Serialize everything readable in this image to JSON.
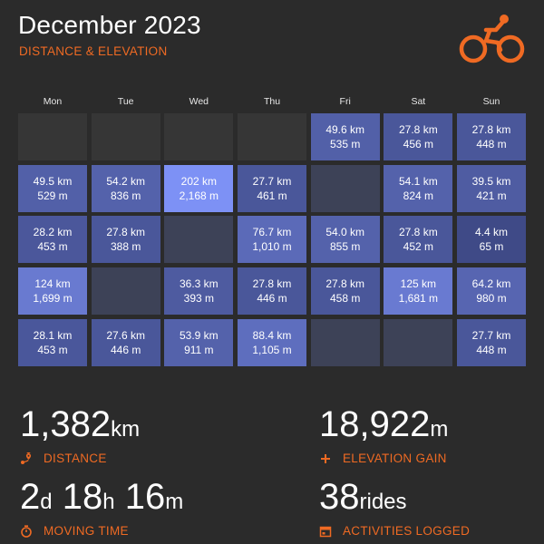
{
  "header": {
    "title": "December 2023",
    "subtitle": "DISTANCE & ELEVATION"
  },
  "colors": {
    "background": "#2b2b2b",
    "accent": "#ef6a23",
    "empty_cell": "#363636",
    "no_ride_cell": "#3d4257",
    "ride_low": "#3f4a86",
    "ride_high": "#7d91f5"
  },
  "calendar": {
    "weekdays": [
      "Mon",
      "Tue",
      "Wed",
      "Thu",
      "Fri",
      "Sat",
      "Sun"
    ],
    "weeks": [
      [
        null,
        null,
        null,
        null,
        {
          "distance": "49.6 km",
          "elevation": "535 m",
          "km": 49.6
        },
        {
          "distance": "27.8 km",
          "elevation": "456 m",
          "km": 27.8
        },
        {
          "distance": "27.8 km",
          "elevation": "448 m",
          "km": 27.8
        }
      ],
      [
        {
          "distance": "49.5 km",
          "elevation": "529 m",
          "km": 49.5
        },
        {
          "distance": "54.2 km",
          "elevation": "836 m",
          "km": 54.2
        },
        {
          "distance": "202 km",
          "elevation": "2,168 m",
          "km": 202
        },
        {
          "distance": "27.7 km",
          "elevation": "461 m",
          "km": 27.7
        },
        {},
        {
          "distance": "54.1 km",
          "elevation": "824 m",
          "km": 54.1
        },
        {
          "distance": "39.5 km",
          "elevation": "421 m",
          "km": 39.5
        }
      ],
      [
        {
          "distance": "28.2 km",
          "elevation": "453 m",
          "km": 28.2
        },
        {
          "distance": "27.8 km",
          "elevation": "388 m",
          "km": 27.8
        },
        {},
        {
          "distance": "76.7 km",
          "elevation": "1,010 m",
          "km": 76.7
        },
        {
          "distance": "54.0 km",
          "elevation": "855 m",
          "km": 54.0
        },
        {
          "distance": "27.8 km",
          "elevation": "452 m",
          "km": 27.8
        },
        {
          "distance": "4.4 km",
          "elevation": "65 m",
          "km": 4.4
        }
      ],
      [
        {
          "distance": "124 km",
          "elevation": "1,699 m",
          "km": 124
        },
        {},
        {
          "distance": "36.3 km",
          "elevation": "393 m",
          "km": 36.3
        },
        {
          "distance": "27.8 km",
          "elevation": "446 m",
          "km": 27.8
        },
        {
          "distance": "27.8 km",
          "elevation": "458 m",
          "km": 27.8
        },
        {
          "distance": "125 km",
          "elevation": "1,681 m",
          "km": 125
        },
        {
          "distance": "64.2 km",
          "elevation": "980 m",
          "km": 64.2
        }
      ],
      [
        {
          "distance": "28.1 km",
          "elevation": "453 m",
          "km": 28.1
        },
        {
          "distance": "27.6 km",
          "elevation": "446 m",
          "km": 27.6
        },
        {
          "distance": "53.9 km",
          "elevation": "911 m",
          "km": 53.9
        },
        {
          "distance": "88.4 km",
          "elevation": "1,105 m",
          "km": 88.4
        },
        {},
        {},
        {
          "distance": "27.7 km",
          "elevation": "448 m",
          "km": 27.7
        }
      ]
    ]
  },
  "stats": {
    "distance": {
      "value": "1,382",
      "unit": "km",
      "label": "DISTANCE",
      "icon": "route-pin-icon"
    },
    "elevation": {
      "value": "18,922",
      "unit": "m",
      "label": "ELEVATION GAIN",
      "icon": "plus-icon"
    },
    "moving_time": {
      "d": "2",
      "d_unit": "d",
      "h": "18",
      "h_unit": "h",
      "m": "16",
      "m_unit": "m",
      "label": "MOVING TIME",
      "icon": "stopwatch-icon"
    },
    "activities": {
      "value": "38",
      "unit": "rides",
      "label": "ACTIVITIES LOGGED",
      "icon": "calendar-icon"
    }
  },
  "icons": {
    "logo": "cyclist-icon"
  }
}
